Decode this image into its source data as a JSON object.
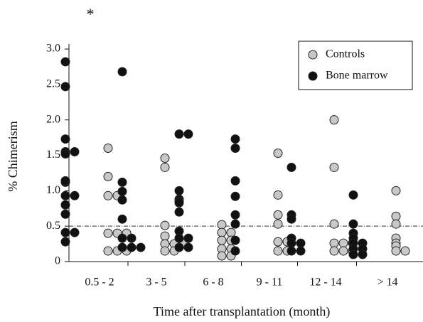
{
  "chart_data": {
    "type": "dot",
    "categories": [
      "0.5 - 2",
      "3 - 5",
      "6 - 8",
      "9 - 11",
      "12 - 14",
      "> 14"
    ],
    "x_label": "Time after transplantation (month)",
    "y_label": "% Chimerism",
    "annotation": "*",
    "ylim": [
      0,
      3.0
    ],
    "yticks": [
      0,
      0.5,
      {
        "value": 1.0,
        "label": "1.0"
      },
      1.5,
      {
        "value": 2.0,
        "label": "2.0"
      },
      2.5,
      {
        "value": 3.0,
        "label": "3.0"
      }
    ],
    "reference_line": 0.5,
    "legend": "upper right",
    "series": [
      {
        "name": "Controls",
        "color": "#c8c8c8",
        "values": [
          [
            1.6,
            1.2,
            0.93,
            0.93,
            0.4,
            0.4,
            0.4,
            0.15,
            0.15,
            0.15
          ],
          [
            1.46,
            1.33,
            0.51,
            0.36,
            0.25,
            0.25,
            0.25,
            0.15,
            0.15
          ],
          [
            0.52,
            0.41,
            0.41,
            0.3,
            0.3,
            0.18,
            0.18,
            0.08,
            0.08
          ],
          [
            1.53,
            0.94,
            0.66,
            0.53,
            0.28,
            0.28,
            0.15,
            0.15
          ],
          [
            2.0,
            1.33,
            0.53,
            0.26,
            0.26,
            0.26,
            0.15,
            0.15,
            0.15
          ],
          [
            1.0,
            0.64,
            0.53,
            0.33,
            0.26,
            0.22,
            0.15,
            0.15
          ]
        ]
      },
      {
        "name": "Bone marrow",
        "color": "#111111",
        "values": [
          [
            2.82,
            2.47,
            1.73,
            1.55,
            1.52,
            1.55,
            1.12,
            1.14,
            0.93,
            0.93,
            0.8,
            0.67,
            0.41,
            0.41,
            0.28
          ],
          [
            2.68,
            1.12,
            0.99,
            0.87,
            0.6,
            0.33,
            0.33,
            0.2,
            0.2,
            0.2
          ],
          [
            1.8,
            1.8,
            1.0,
            0.88,
            0.85,
            0.83,
            0.7,
            0.43,
            0.33,
            0.33,
            0.2,
            0.2
          ],
          [
            1.73,
            1.6,
            1.14,
            0.92,
            0.66,
            0.53,
            0.3,
            0.15
          ],
          [
            1.33,
            0.66,
            0.6,
            0.33,
            0.26,
            0.26,
            0.15,
            0.15
          ],
          [
            0.94,
            0.53,
            0.4,
            0.33,
            0.26,
            0.26,
            0.18,
            0.18,
            0.1,
            0.1
          ]
        ]
      }
    ]
  }
}
